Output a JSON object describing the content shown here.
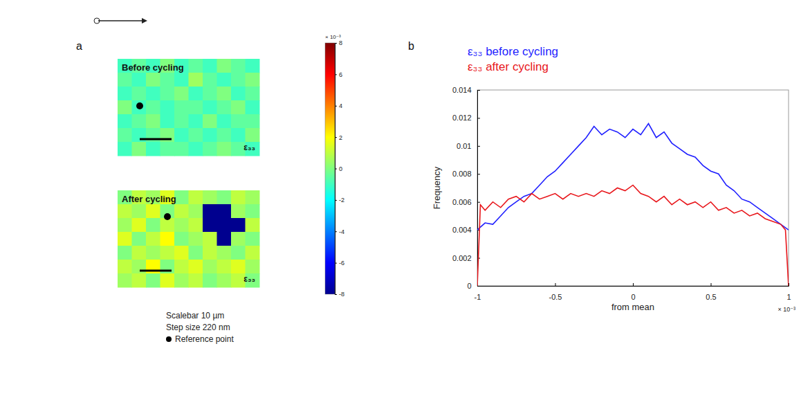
{
  "chart_data": [
    {
      "type": "heatmap",
      "panel_label": "a",
      "title": "Before cycling",
      "label": "ε₃₃",
      "cells": [
        [
          -1,
          -0.5,
          -1,
          0,
          -1,
          -0.5,
          -1,
          0,
          -0.5,
          -1
        ],
        [
          -0.5,
          -1,
          0,
          -0.5,
          -1,
          0.5,
          -0.5,
          -1,
          -0.5,
          0
        ],
        [
          -1,
          -0.5,
          -1,
          -0.5,
          0,
          -1,
          -0.5,
          0,
          -1,
          -0.5
        ],
        [
          0,
          -1,
          -0.5,
          -1,
          -0.5,
          -0.5,
          -1,
          -0.5,
          0,
          -1
        ],
        [
          -1,
          -0.5,
          0,
          -1,
          -0.5,
          -1,
          0,
          -1,
          -0.5,
          -0.5
        ],
        [
          -0.5,
          -1,
          -0.5,
          0,
          -1,
          -0.5,
          -1,
          -0.5,
          -1,
          0
        ],
        [
          -1,
          0,
          -1,
          -0.5,
          -0.5,
          -1,
          -0.5,
          0,
          -0.5,
          -1
        ]
      ],
      "colorbar": {
        "range": [
          -8,
          8
        ],
        "ticks": [
          -8,
          -6,
          -4,
          -2,
          0,
          2,
          4,
          6,
          8
        ],
        "multiplier": "× 10⁻³"
      }
    },
    {
      "type": "heatmap",
      "title": "After cycling",
      "label": "ε₃₃",
      "cells": [
        [
          0,
          1,
          0.5,
          1.5,
          0,
          1,
          0.5,
          0,
          1,
          0.5
        ],
        [
          1,
          0.5,
          1.5,
          0,
          1,
          0.5,
          -8,
          -8,
          0.5,
          0
        ],
        [
          0.5,
          1.5,
          0,
          1,
          0.5,
          1,
          -8,
          -8,
          -8,
          1
        ],
        [
          1.5,
          0,
          1,
          2,
          0,
          0.5,
          1,
          -8,
          0.5,
          0
        ],
        [
          0,
          1,
          0.5,
          1,
          1.5,
          0,
          1,
          0.5,
          0,
          1
        ],
        [
          1,
          0.5,
          2,
          0,
          1,
          1.5,
          0.5,
          1,
          1.5,
          0.5
        ],
        [
          0.5,
          1,
          0,
          1.5,
          0.5,
          1,
          0,
          0.5,
          1,
          0
        ]
      ],
      "notes": [
        "Scalebar 10 µm",
        "Step size 220 nm",
        "Reference point"
      ]
    },
    {
      "type": "line",
      "panel_label": "b",
      "x_label": "from mean",
      "y_label": "Frequency",
      "x_multiplier": "× 10⁻³",
      "legend": "top",
      "xlim": [
        -1,
        1
      ],
      "xticks": [
        -1,
        -0.5,
        0,
        0.5,
        1
      ],
      "ylim": [
        0,
        0.014
      ],
      "yticks": [
        0,
        0.002,
        0.004,
        0.006,
        0.008,
        0.01,
        0.012,
        0.014
      ],
      "series": [
        {
          "name": "ε₃₃ before cycling",
          "color": "#1f1fff",
          "x": [
            -1,
            -0.95,
            -0.9,
            -0.85,
            -0.8,
            -0.75,
            -0.7,
            -0.65,
            -0.6,
            -0.55,
            -0.5,
            -0.45,
            -0.4,
            -0.35,
            -0.3,
            -0.25,
            -0.2,
            -0.15,
            -0.1,
            -0.05,
            0,
            0.05,
            0.1,
            0.15,
            0.2,
            0.25,
            0.3,
            0.35,
            0.4,
            0.45,
            0.5,
            0.55,
            0.6,
            0.65,
            0.7,
            0.75,
            0.8,
            0.85,
            0.9,
            0.95,
            1
          ],
          "values": [
            0.004,
            0.0045,
            0.0044,
            0.005,
            0.0056,
            0.006,
            0.0064,
            0.0066,
            0.0072,
            0.0078,
            0.0082,
            0.0088,
            0.0094,
            0.01,
            0.0106,
            0.0114,
            0.0108,
            0.0112,
            0.011,
            0.0106,
            0.0112,
            0.0108,
            0.0116,
            0.0106,
            0.011,
            0.0102,
            0.0098,
            0.0094,
            0.0092,
            0.0086,
            0.0082,
            0.008,
            0.0072,
            0.0068,
            0.0062,
            0.006,
            0.0056,
            0.0052,
            0.0048,
            0.0044,
            0.004
          ]
        },
        {
          "name": "ε₃₃ after cycling",
          "color": "#e8161b",
          "x": [
            -1,
            -0.98,
            -0.95,
            -0.9,
            -0.85,
            -0.8,
            -0.75,
            -0.7,
            -0.65,
            -0.6,
            -0.55,
            -0.5,
            -0.45,
            -0.4,
            -0.35,
            -0.3,
            -0.25,
            -0.2,
            -0.15,
            -0.1,
            -0.05,
            0,
            0.05,
            0.1,
            0.15,
            0.2,
            0.25,
            0.3,
            0.35,
            0.4,
            0.45,
            0.5,
            0.55,
            0.6,
            0.65,
            0.7,
            0.75,
            0.8,
            0.85,
            0.9,
            0.95,
            0.98,
            1
          ],
          "values": [
            0,
            0.0058,
            0.0054,
            0.006,
            0.0056,
            0.0062,
            0.0064,
            0.006,
            0.0066,
            0.0062,
            0.0064,
            0.0066,
            0.0062,
            0.0066,
            0.0064,
            0.0066,
            0.0064,
            0.0068,
            0.0066,
            0.007,
            0.0068,
            0.0072,
            0.0066,
            0.0064,
            0.006,
            0.0064,
            0.0058,
            0.0062,
            0.0058,
            0.006,
            0.0056,
            0.006,
            0.0054,
            0.0056,
            0.0052,
            0.0054,
            0.005,
            0.0052,
            0.0048,
            0.0046,
            0.0044,
            0.004,
            0
          ]
        }
      ]
    }
  ]
}
